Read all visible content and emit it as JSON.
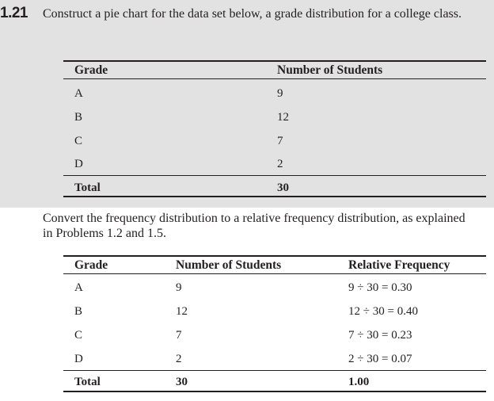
{
  "problem": {
    "number": "1.21",
    "text": "Construct a pie chart for the data set below, a grade distribution for a college class."
  },
  "table1": {
    "headers": [
      "Grade",
      "Number of Students"
    ],
    "rows": [
      {
        "grade": "A",
        "students": "9"
      },
      {
        "grade": "B",
        "students": "12"
      },
      {
        "grade": "C",
        "students": "7"
      },
      {
        "grade": "D",
        "students": "2"
      }
    ],
    "total": {
      "label": "Total",
      "students": "30"
    }
  },
  "explanation": "Convert the frequency distribution to a relative frequency distribution, as explained in Problems 1.2 and 1.5.",
  "table2": {
    "headers": [
      "Grade",
      "Number of Students",
      "Relative Frequency"
    ],
    "rows": [
      {
        "grade": "A",
        "students": "9",
        "relative": "9 ÷ 30 = 0.30"
      },
      {
        "grade": "B",
        "students": "12",
        "relative": "12 ÷ 30 = 0.40"
      },
      {
        "grade": "C",
        "students": "7",
        "relative": "7 ÷ 30 = 0.23"
      },
      {
        "grade": "D",
        "students": "2",
        "relative": "2 ÷ 30 = 0.07"
      }
    ],
    "total": {
      "label": "Total",
      "students": "30",
      "relative": "1.00"
    }
  }
}
